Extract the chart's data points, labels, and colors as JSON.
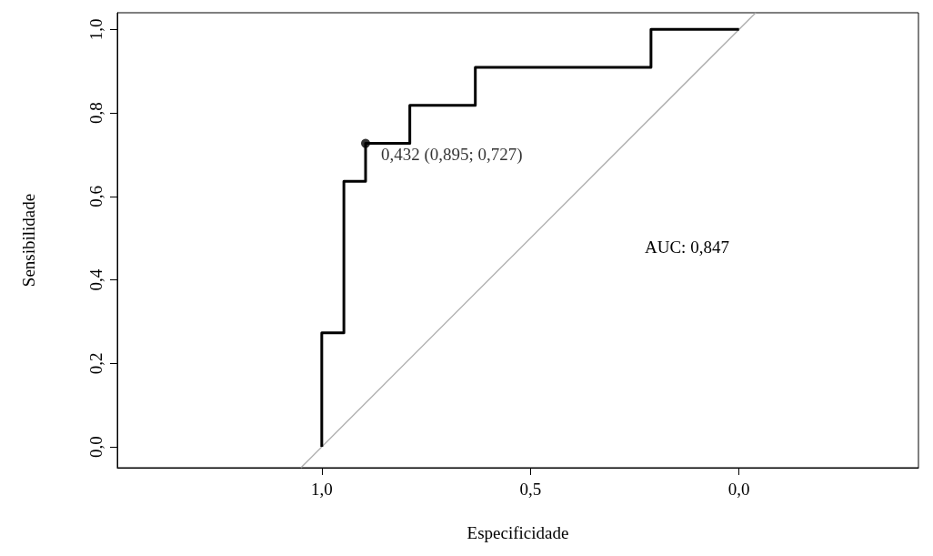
{
  "chart_data": {
    "type": "step",
    "xlabel": "Especificidade",
    "ylabel": "Sensibilidade",
    "xlim": [
      1.49,
      -0.43
    ],
    "ylim": [
      -0.05,
      1.04
    ],
    "xticks": [
      {
        "value": 1,
        "label": "1,0"
      },
      {
        "value": 0.5,
        "label": "0,5"
      },
      {
        "value": 0,
        "label": "0,0"
      }
    ],
    "yticks": [
      {
        "value": 0,
        "label": "0,0"
      },
      {
        "value": 0.2,
        "label": "0,2"
      },
      {
        "value": 0.4,
        "label": "0,4"
      },
      {
        "value": 0.6,
        "label": "0,6"
      },
      {
        "value": 0.8,
        "label": "0,8"
      },
      {
        "value": 1,
        "label": "1,0"
      }
    ],
    "grid": false,
    "marker": "none",
    "series": [
      {
        "type": "line",
        "color": "#aaaaaa",
        "x": [
          1.05,
          -0.04
        ],
        "values": [
          -0.05,
          1.04
        ]
      },
      {
        "color": "#000000",
        "x": [
          1,
          1,
          0.947,
          0.895,
          0.789,
          0.632,
          0.211,
          0
        ],
        "values": [
          0,
          0.273,
          0.636,
          0.727,
          0.818,
          0.909,
          1,
          1
        ]
      },
      {
        "type": "scatter",
        "color": "#000000",
        "marker": "circle",
        "x": [
          0.895
        ],
        "values": [
          0.727
        ]
      }
    ],
    "annotations": [
      {
        "text": "0,432 (0,895; 0,727)",
        "x": 0.895,
        "y": 0.727
      },
      "AUC: 0,847"
    ]
  }
}
